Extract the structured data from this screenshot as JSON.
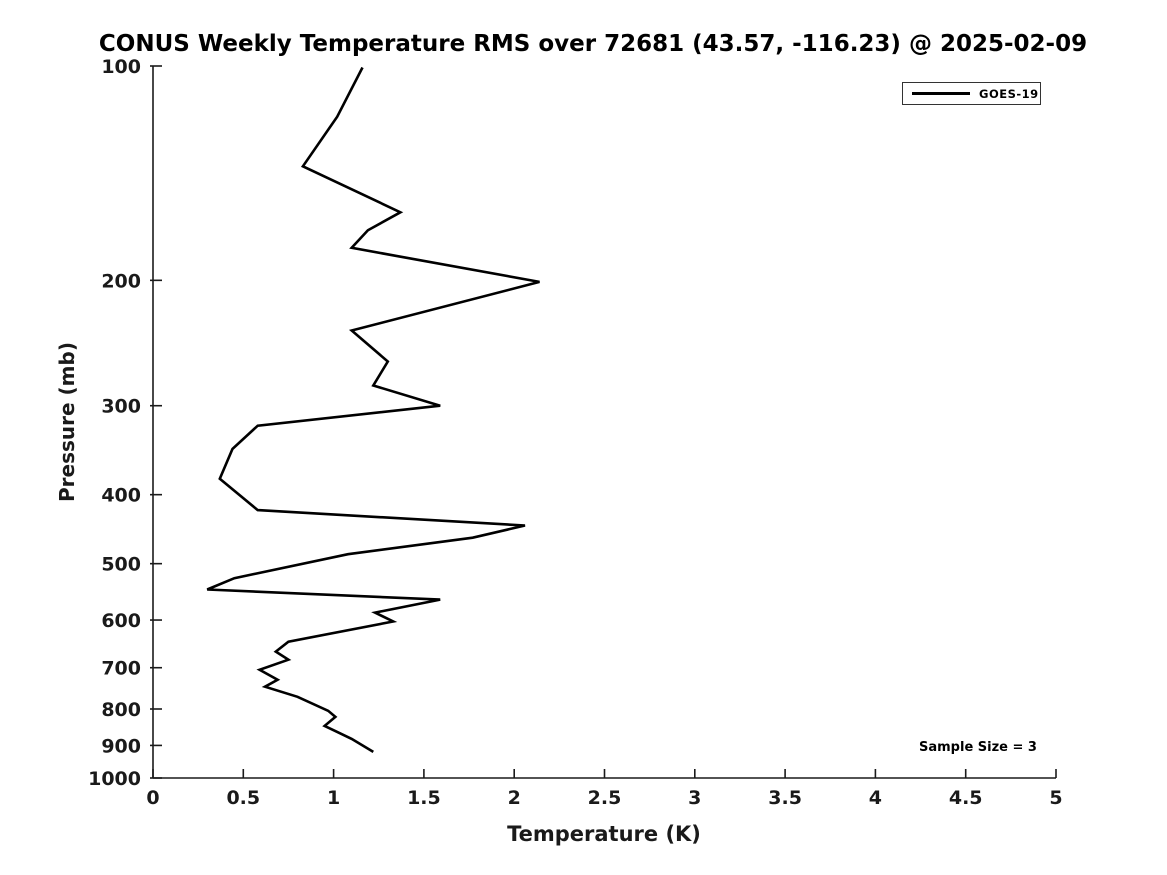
{
  "chart_data": {
    "type": "line",
    "title": "CONUS Weekly Temperature RMS over 72681 (43.57, -116.23) @ 2025-02-09",
    "xlabel": "Temperature (K)",
    "ylabel": "Pressure (mb)",
    "xlim": [
      0,
      5
    ],
    "xticks": [
      0,
      0.5,
      1,
      1.5,
      2,
      2.5,
      3,
      3.5,
      4,
      4.5,
      5
    ],
    "ylim": [
      100,
      1000
    ],
    "yticks": [
      100,
      200,
      300,
      400,
      500,
      600,
      700,
      800,
      900,
      1000
    ],
    "yscale": "log",
    "y_axis_inverted": true,
    "grid": false,
    "line_color": "#000000",
    "axis_color": "#1a1a1a",
    "legend": {
      "position": "top-right",
      "entries": [
        {
          "label": "GOES-19",
          "color": "#000000"
        }
      ]
    },
    "annotation": "Sample Size = 3",
    "series": [
      {
        "name": "GOES-19",
        "color": "#000000",
        "point_format": "[pressure_mb, rms_k]",
        "points": [
          [
            100.5,
            1.16
          ],
          [
            117.8,
            1.02
          ],
          [
            138.3,
            0.83
          ],
          [
            160.5,
            1.37
          ],
          [
            170.1,
            1.19
          ],
          [
            180.0,
            1.1
          ],
          [
            201.0,
            2.14
          ],
          [
            235.2,
            1.1
          ],
          [
            260.0,
            1.3
          ],
          [
            281.0,
            1.22
          ],
          [
            300.0,
            1.59
          ],
          [
            320.0,
            0.58
          ],
          [
            345.0,
            0.44
          ],
          [
            380.0,
            0.37
          ],
          [
            420.5,
            0.58
          ],
          [
            441.9,
            2.06
          ],
          [
            459.7,
            1.77
          ],
          [
            485.0,
            1.08
          ],
          [
            524.0,
            0.45
          ],
          [
            543.6,
            0.3
          ],
          [
            561.7,
            1.59
          ],
          [
            585.7,
            1.23
          ],
          [
            602.9,
            1.33
          ],
          [
            643.6,
            0.75
          ],
          [
            664.5,
            0.68
          ],
          [
            682.0,
            0.75
          ],
          [
            704.7,
            0.59
          ],
          [
            727.8,
            0.69
          ],
          [
            744.3,
            0.62
          ],
          [
            769.0,
            0.8
          ],
          [
            804.8,
            0.97
          ],
          [
            820.7,
            1.01
          ],
          [
            845.0,
            0.95
          ],
          [
            861.6,
            1.02
          ],
          [
            881.3,
            1.1
          ],
          [
            919.2,
            1.22
          ]
        ]
      }
    ]
  }
}
